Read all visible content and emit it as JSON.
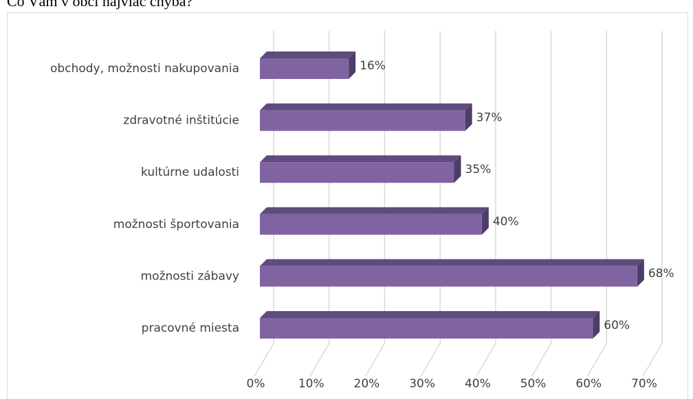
{
  "chart_data": {
    "type": "bar3d_horizontal",
    "title": "Čo Vám v obci najviac chýba?",
    "categories": [
      "obchody, možnosti nakupovania",
      "zdravotné inštitúcie",
      "kultúrne udalosti",
      "možnosti športovania",
      "možnosti zábavy",
      "pracovné miesta"
    ],
    "values": [
      16,
      37,
      35,
      40,
      68,
      60
    ],
    "value_labels": [
      "16%",
      "37%",
      "35%",
      "40%",
      "68%",
      "60%"
    ],
    "color": "#8064a2",
    "xlim": [
      0,
      70
    ],
    "xticks": [
      {
        "value": 0,
        "label": "0%"
      },
      {
        "value": 10,
        "label": "10%"
      },
      {
        "value": 20,
        "label": "20%"
      },
      {
        "value": 30,
        "label": "30%"
      },
      {
        "value": 40,
        "label": "40%"
      },
      {
        "value": 50,
        "label": "50%"
      },
      {
        "value": 60,
        "label": "60%"
      },
      {
        "value": 70,
        "label": "70%"
      }
    ],
    "grid": true
  }
}
